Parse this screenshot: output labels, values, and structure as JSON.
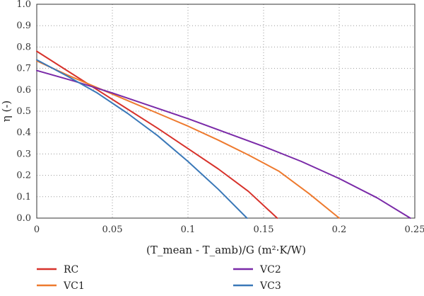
{
  "chart_data": {
    "type": "line",
    "title": "",
    "xlabel": "(T_mean - T_amb)/G  (m²·K/W)",
    "ylabel": "η (-)",
    "xlim": [
      0,
      0.25
    ],
    "ylim": [
      0,
      1.0
    ],
    "x_ticks": [
      "0",
      "0.05",
      "0.1",
      "0.15",
      "0.2",
      "0.25"
    ],
    "y_ticks": [
      "0.0",
      "0.1",
      "0.2",
      "0.3",
      "0.4",
      "0.5",
      "0.6",
      "0.7",
      "0.8",
      "0.9",
      "1.0"
    ],
    "grid": "dotted",
    "legend_placement": "bottom",
    "series": [
      {
        "name": "RC",
        "color": "#d7322b",
        "x": [
          0,
          0.02,
          0.04,
          0.06,
          0.08,
          0.1,
          0.12,
          0.14,
          0.159
        ],
        "y": [
          0.78,
          0.69,
          0.6,
          0.51,
          0.42,
          0.325,
          0.23,
          0.125,
          0.0
        ]
      },
      {
        "name": "VC1",
        "color": "#ee7a2e",
        "x": [
          0,
          0.02,
          0.04,
          0.06,
          0.08,
          0.1,
          0.12,
          0.14,
          0.16,
          0.18,
          0.2
        ],
        "y": [
          0.735,
          0.67,
          0.61,
          0.55,
          0.49,
          0.43,
          0.365,
          0.295,
          0.22,
          0.115,
          0.0
        ]
      },
      {
        "name": "VC2",
        "color": "#7a2aa8",
        "x": [
          0,
          0.025,
          0.05,
          0.075,
          0.1,
          0.125,
          0.15,
          0.175,
          0.2,
          0.225,
          0.247
        ],
        "y": [
          0.69,
          0.64,
          0.585,
          0.525,
          0.465,
          0.4,
          0.335,
          0.265,
          0.185,
          0.095,
          0.0
        ]
      },
      {
        "name": "VC3",
        "color": "#3a78b8",
        "x": [
          0,
          0.02,
          0.04,
          0.06,
          0.08,
          0.1,
          0.12,
          0.139
        ],
        "y": [
          0.74,
          0.665,
          0.585,
          0.49,
          0.385,
          0.265,
          0.135,
          0.0
        ]
      }
    ]
  }
}
